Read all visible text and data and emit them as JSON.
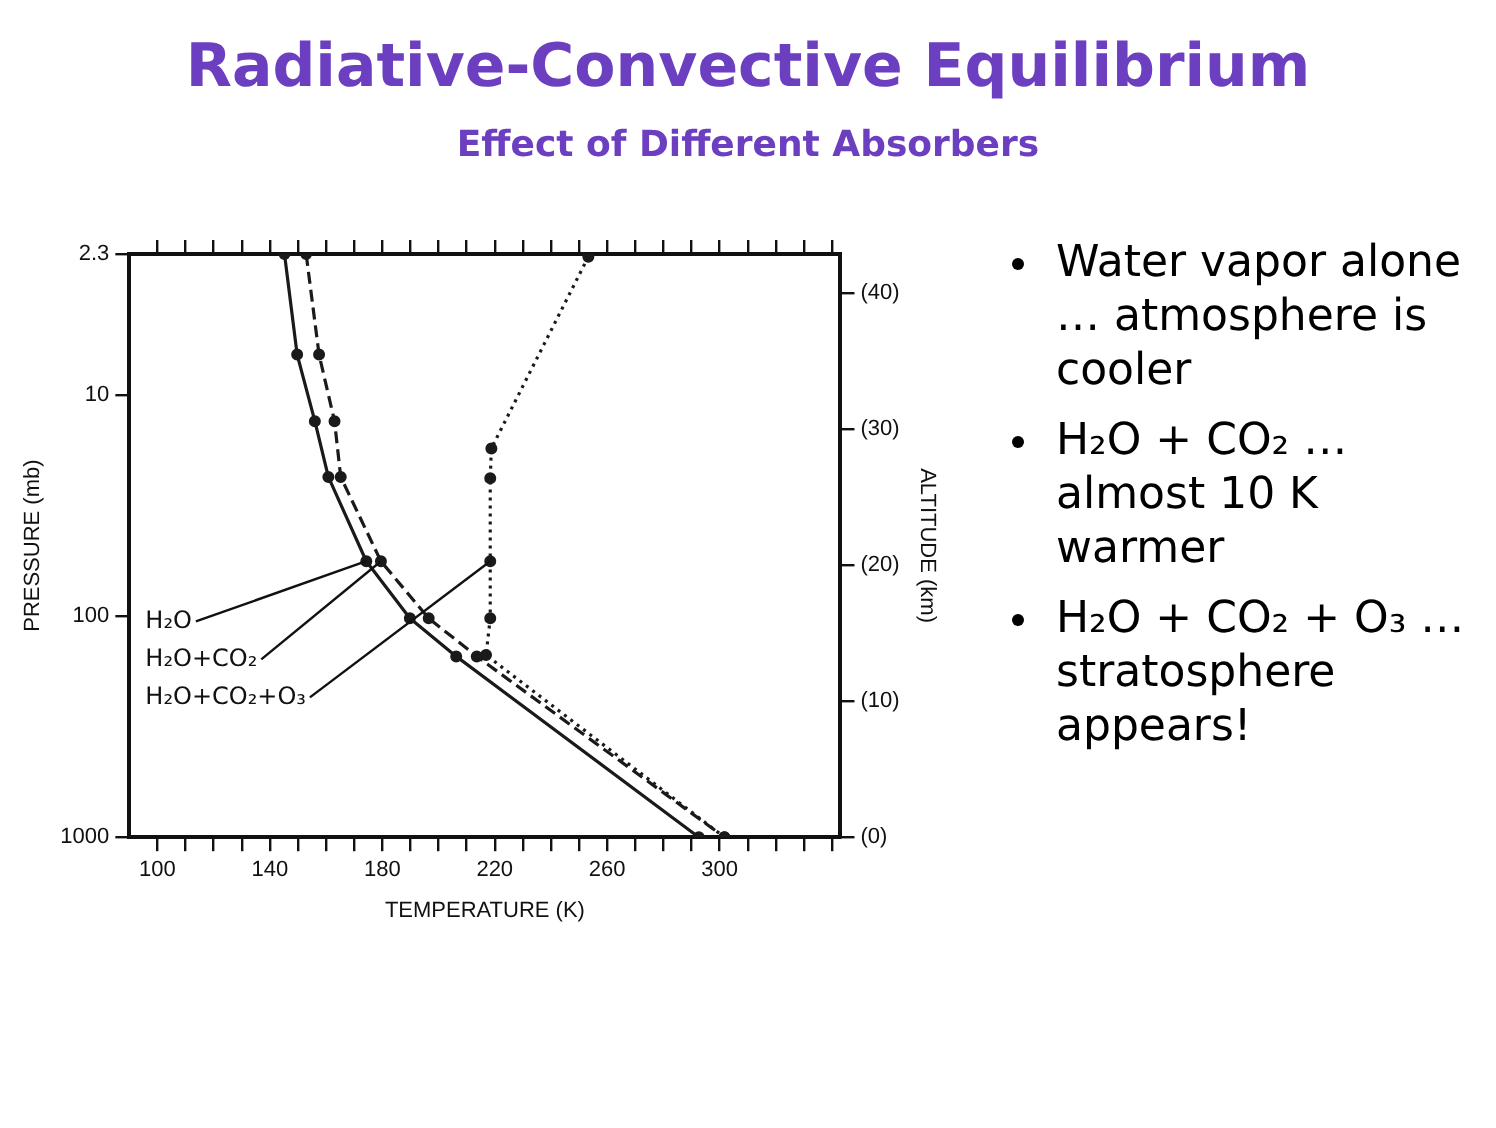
{
  "chart_data": {
    "type": "line",
    "title": "Radiative-Convective Equilibrium",
    "subtitle": "Effect of Different Absorbers",
    "xlabel": "TEMPERATURE (K)",
    "ylabel": "PRESSURE (mb)",
    "y2label": "ALTITUDE (km)",
    "annotations": [
      "Water vapor alone … atmosphere is cooler",
      "H₂O + CO₂ … almost 10 K warmer",
      "H₂O + CO₂ + O₃ … stratosphere appears!"
    ],
    "xlim": [
      90,
      343
    ],
    "xticks": [
      100,
      {
        "value": 110,
        "label": null
      },
      {
        "value": 120,
        "label": null
      },
      {
        "value": 130,
        "label": null
      },
      140,
      {
        "value": 150,
        "label": null
      },
      {
        "value": 160,
        "label": null
      },
      {
        "value": 170,
        "label": null
      },
      180,
      {
        "value": 190,
        "label": null
      },
      {
        "value": 200,
        "label": null
      },
      {
        "value": 210,
        "label": null
      },
      220,
      {
        "value": 230,
        "label": null
      },
      {
        "value": 240,
        "label": null
      },
      {
        "value": 250,
        "label": null
      },
      260,
      {
        "value": 270,
        "label": null
      },
      {
        "value": 280,
        "label": null
      },
      {
        "value": 290,
        "label": null
      },
      300,
      {
        "value": 310,
        "label": null
      },
      {
        "value": 320,
        "label": null
      },
      {
        "value": 330,
        "label": null
      },
      {
        "value": 340,
        "label": null
      }
    ],
    "ylim": [
      1000,
      2.3
    ],
    "yticks": [
      2.3,
      10,
      100,
      1000
    ],
    "log": "y",
    "y2lim": [
      0,
      42.9
    ],
    "y2ticks": [
      {
        "value": 0,
        "label": "(0)"
      },
      {
        "value": 10,
        "label": "(10)"
      },
      {
        "value": 20,
        "label": "(20)"
      },
      {
        "value": 30,
        "label": "(30)"
      },
      {
        "value": 40,
        "label": "(40)"
      }
    ],
    "grid": false,
    "marker": "circle",
    "series": [
      {
        "name": "H₂O",
        "color": "#1a1a1a",
        "axis": "y2",
        "line_style": "solid",
        "x": [
          145.2,
          149.7,
          156,
          160.8,
          174.3,
          189.8,
          206.3,
          292.6
        ],
        "values": [
          42.9,
          35.5,
          30.6,
          26.5,
          20.3,
          16.1,
          13.3,
          0
        ]
      },
      {
        "name": "H₂O+CO₂",
        "color": "#1a1a1a",
        "axis": "y2",
        "line_style": "dashed",
        "x": [
          152.9,
          157.5,
          163,
          165.2,
          179.5,
          196.5,
          213.6,
          301.7
        ],
        "values": [
          42.9,
          35.5,
          30.6,
          26.5,
          20.3,
          16.1,
          13.3,
          0
        ]
      },
      {
        "name": "H₂O+CO₂+O₃",
        "color": "#1a1a1a",
        "axis": "y2",
        "line_style": "dotted",
        "x": [
          253.3,
          218.8,
          218.4,
          218.4,
          218.4,
          216.9,
          301.7
        ],
        "values": [
          42.7,
          28.6,
          26.4,
          20.3,
          16.1,
          13.4,
          0
        ]
      }
    ]
  }
}
